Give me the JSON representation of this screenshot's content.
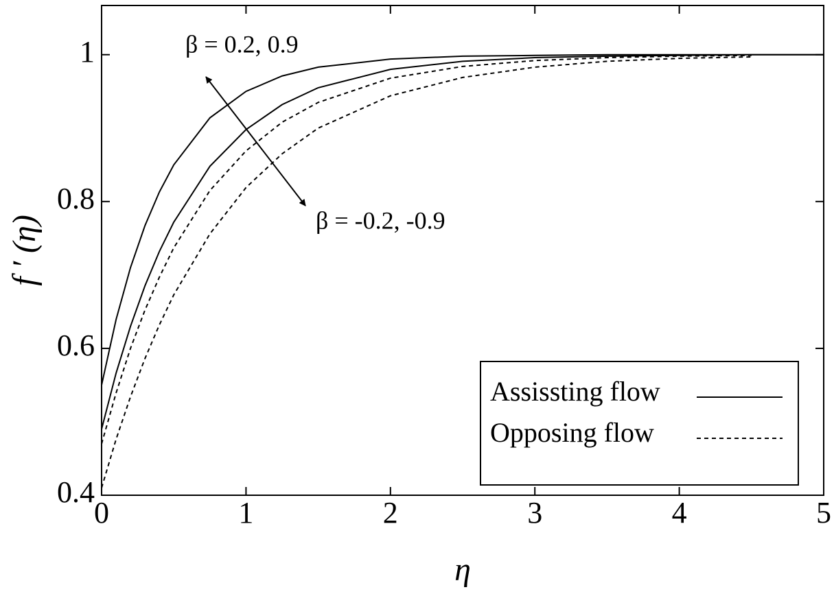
{
  "chart_data": {
    "type": "line",
    "x_label": "η",
    "y_label": "f ′ (η)",
    "x": [
      0,
      0.1,
      0.2,
      0.3,
      0.4,
      0.5,
      0.75,
      1,
      1.25,
      1.5,
      2,
      2.5,
      3,
      3.5,
      4,
      4.5,
      5
    ],
    "series": [
      {
        "name": "Assissting flow",
        "color": "#000000",
        "dash": "solid",
        "values": [
          0.55,
          0.639,
          0.71,
          0.767,
          0.813,
          0.85,
          0.914,
          0.95,
          0.971,
          0.983,
          0.994,
          0.998,
          0.999,
          1,
          1,
          1,
          1
        ]
      },
      {
        "color": "#000000",
        "dash": "solid",
        "values": [
          0.49,
          0.566,
          0.63,
          0.685,
          0.732,
          0.772,
          0.848,
          0.898,
          0.932,
          0.955,
          0.98,
          0.991,
          0.996,
          0.998,
          0.999,
          1,
          1
        ]
      },
      {
        "name": "Opposing flow",
        "color": "#000000",
        "dash": "dashed",
        "values": [
          0.47,
          0.539,
          0.6,
          0.652,
          0.697,
          0.737,
          0.815,
          0.869,
          0.908,
          0.935,
          0.968,
          0.984,
          0.992,
          0.996,
          0.998,
          0.999,
          null
        ]
      },
      {
        "color": "#000000",
        "dash": "dashed",
        "values": [
          0.41,
          0.476,
          0.534,
          0.586,
          0.632,
          0.673,
          0.756,
          0.819,
          0.865,
          0.9,
          0.944,
          0.969,
          0.983,
          0.991,
          0.995,
          0.997,
          null
        ]
      }
    ],
    "annotations": [
      "β = 0.2, 0.9",
      "β = -0.2, -0.9"
    ],
    "xlim": [
      0,
      5
    ],
    "xticks": [
      0,
      1,
      2,
      3,
      4,
      5
    ],
    "ylim": [
      0.4,
      1.067
    ],
    "yticks": [
      0.4,
      0.6,
      0.8,
      1
    ],
    "grid": false,
    "legend_position": "lower right"
  }
}
